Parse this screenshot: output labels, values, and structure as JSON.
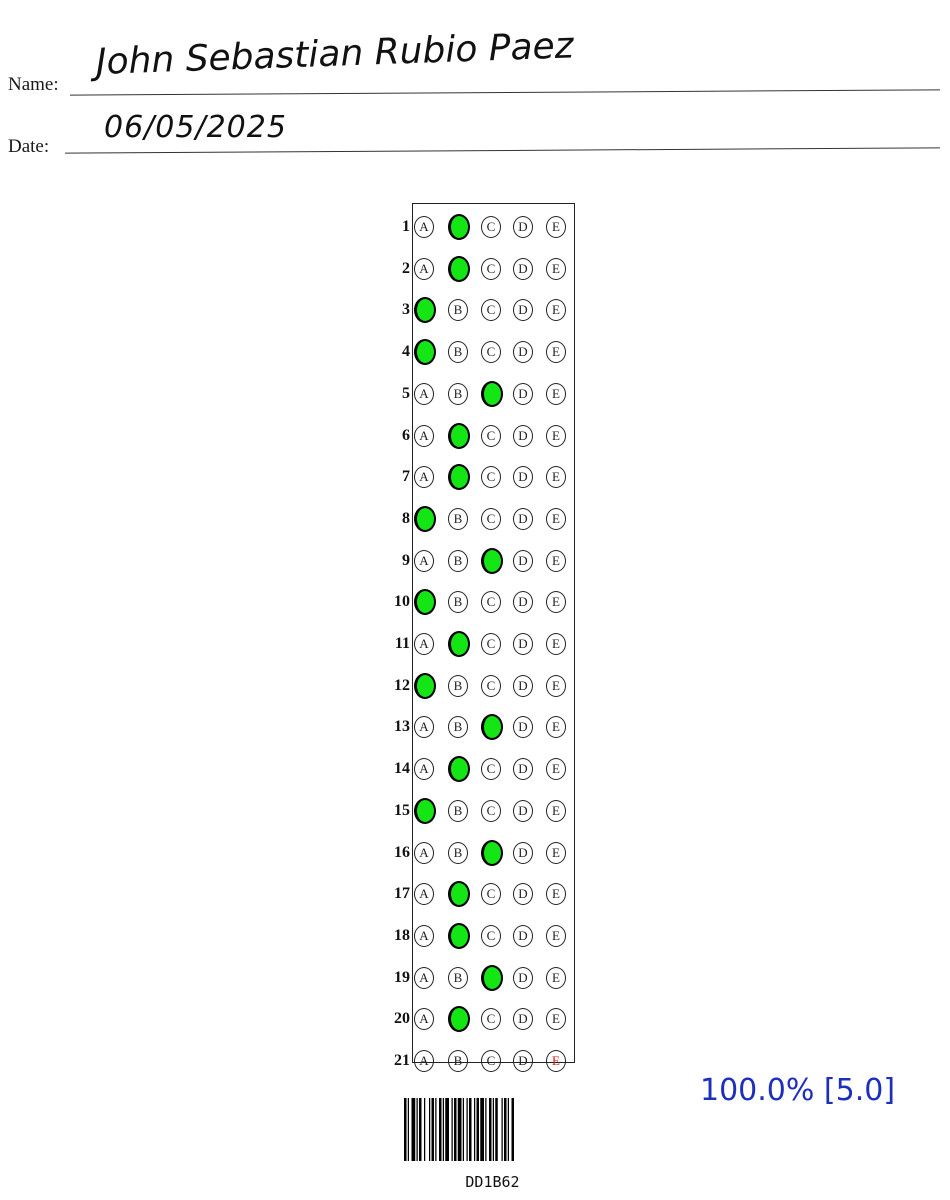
{
  "header": {
    "name_label": "Name:",
    "name_value": "John Sebastian Rubio Paez",
    "date_label": "Date:",
    "date_value": "06/05/2025"
  },
  "options": [
    "A",
    "B",
    "C",
    "D",
    "E"
  ],
  "answers": [
    {
      "q": "1",
      "filled": "B"
    },
    {
      "q": "2",
      "filled": "B"
    },
    {
      "q": "3",
      "filled": "A"
    },
    {
      "q": "4",
      "filled": "A"
    },
    {
      "q": "5",
      "filled": "C"
    },
    {
      "q": "6",
      "filled": "B"
    },
    {
      "q": "7",
      "filled": "B"
    },
    {
      "q": "8",
      "filled": "A"
    },
    {
      "q": "9",
      "filled": "C"
    },
    {
      "q": "10",
      "filled": "A"
    },
    {
      "q": "11",
      "filled": "B"
    },
    {
      "q": "12",
      "filled": "A"
    },
    {
      "q": "13",
      "filled": "C"
    },
    {
      "q": "14",
      "filled": "B"
    },
    {
      "q": "15",
      "filled": "A"
    },
    {
      "q": "16",
      "filled": "C"
    },
    {
      "q": "17",
      "filled": "B"
    },
    {
      "q": "18",
      "filled": "B"
    },
    {
      "q": "19",
      "filled": "C"
    },
    {
      "q": "20",
      "filled": "B"
    },
    {
      "q": "21",
      "filled": "",
      "flag": "E"
    }
  ],
  "colors": {
    "filled": "#14e514",
    "flag": "#e01010",
    "score": "#1c2fbd"
  },
  "score": "100.0% [5.0]",
  "barcode_text": "DD1B62"
}
